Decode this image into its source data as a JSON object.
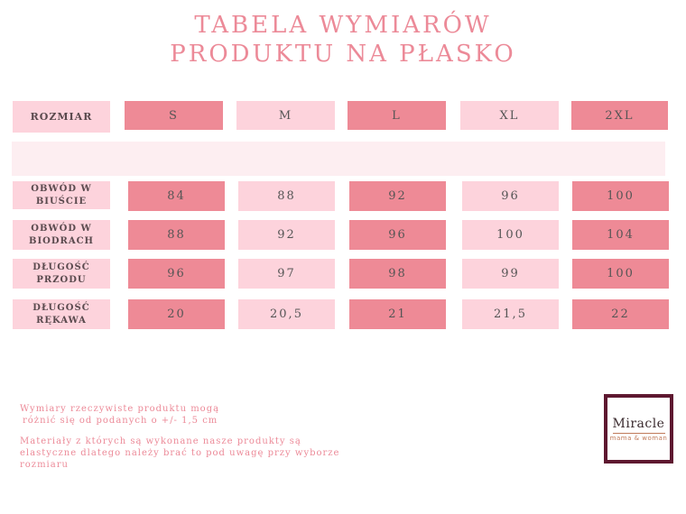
{
  "title": {
    "line1": "TABELA WYMIARÓW",
    "line2": "PRODUKTU NA PŁASKO"
  },
  "table": {
    "header_label": "ROZMIAR",
    "sizes": [
      "S",
      "M",
      "L",
      "XL",
      "2XL"
    ],
    "rows": [
      {
        "label": "OBWÓD W BIUŚCIE",
        "values": [
          "84",
          "88",
          "92",
          "96",
          "100"
        ]
      },
      {
        "label": "OBWÓD W BIODRACH",
        "values": [
          "88",
          "92",
          "96",
          "100",
          "104"
        ]
      },
      {
        "label": "DŁUGOŚĆ PRZODU",
        "values": [
          "96",
          "97",
          "98",
          "99",
          "100"
        ]
      },
      {
        "label": "DŁUGOŚĆ RĘKAWA",
        "values": [
          "20",
          "20,5",
          "21",
          "21,5",
          "22"
        ]
      }
    ]
  },
  "notes": {
    "note1_line1": "Wymiary rzeczywiste produktu mogą",
    "note1_line2": "różnić się od podanych o +/- 1,5 cm",
    "note2_line1": "Materiały z których są wykonane nasze produkty są",
    "note2_line2": "elastyczne dlatego należy brać to pod uwagę przy wyborze",
    "note2_line3": "rozmiaru"
  },
  "logo": {
    "main": "Miracle",
    "sub": "mama & woman"
  },
  "colors": {
    "accent": "#ec8a98",
    "dark_cell": "#ee8a96",
    "light_cell": "#fdd3dc",
    "band": "#fdeef1",
    "logo_border": "#5e1830"
  }
}
